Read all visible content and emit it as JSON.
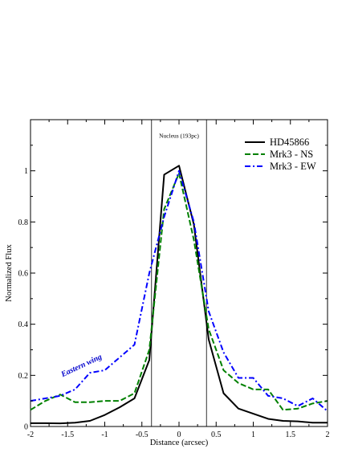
{
  "chart_data": {
    "type": "line",
    "xlabel": "Distance (arcsec)",
    "ylabel": "Normalized Flux",
    "xlim": [
      -2,
      2
    ],
    "ylim": [
      0,
      1.2
    ],
    "x_ticks": [
      -2,
      -1.5,
      -1,
      -0.5,
      0,
      0.5,
      1,
      1.5,
      2
    ],
    "x_tick_labels": [
      "-2",
      "-1.5",
      "-1",
      "-0.5",
      "0",
      "0.5",
      "1",
      "1.5",
      "2"
    ],
    "y_ticks": [
      0,
      0.2,
      0.4,
      0.6,
      0.8,
      1
    ],
    "y_tick_labels": [
      "0",
      "0.2",
      "0.4",
      "0.6",
      "0.8",
      "1"
    ],
    "grid": false,
    "legend_position": "top-right",
    "series": [
      {
        "name": "HD45866",
        "color": "#000000",
        "dash": "solid",
        "x": [
          -2,
          -1.8,
          -1.6,
          -1.4,
          -1.2,
          -1.0,
          -0.8,
          -0.6,
          -0.4,
          -0.2,
          0.0,
          0.2,
          0.4,
          0.6,
          0.8,
          1.0,
          1.2,
          1.4,
          1.6,
          1.8,
          2.0
        ],
        "values": [
          0.013,
          0.013,
          0.012,
          0.015,
          0.022,
          0.045,
          0.075,
          0.11,
          0.26,
          0.985,
          1.02,
          0.79,
          0.34,
          0.13,
          0.07,
          0.05,
          0.03,
          0.022,
          0.02,
          0.015,
          0.015
        ]
      },
      {
        "name": "Mrk3 - NS",
        "color": "#008000",
        "dash": "dashed",
        "x": [
          -2,
          -1.8,
          -1.6,
          -1.4,
          -1.2,
          -1.0,
          -0.8,
          -0.6,
          -0.4,
          -0.2,
          0.0,
          0.2,
          0.4,
          0.6,
          0.8,
          1.0,
          1.2,
          1.4,
          1.6,
          1.8,
          2.0
        ],
        "values": [
          0.065,
          0.1,
          0.125,
          0.095,
          0.095,
          0.1,
          0.1,
          0.13,
          0.3,
          0.85,
          0.99,
          0.73,
          0.38,
          0.22,
          0.17,
          0.145,
          0.145,
          0.065,
          0.07,
          0.09,
          0.1
        ]
      },
      {
        "name": "Mrk3 - EW",
        "color": "#0000ff",
        "dash": "dashdot",
        "x": [
          -2,
          -1.8,
          -1.6,
          -1.4,
          -1.2,
          -1.0,
          -0.8,
          -0.6,
          -0.4,
          -0.2,
          0.0,
          0.2,
          0.4,
          0.6,
          0.8,
          1.0,
          1.2,
          1.4,
          1.6,
          1.8,
          2.0
        ],
        "values": [
          0.1,
          0.11,
          0.12,
          0.145,
          0.21,
          0.22,
          0.27,
          0.32,
          0.6,
          0.82,
          1.0,
          0.8,
          0.45,
          0.29,
          0.19,
          0.19,
          0.12,
          0.11,
          0.08,
          0.11,
          0.06
        ]
      }
    ],
    "vertical_lines": [
      -0.37,
      0.37
    ],
    "annotations": [
      {
        "text": "Nucleus (193pc)",
        "x": 0.0,
        "y": 1.13
      },
      {
        "text": "Eastern wing",
        "x": -1.3,
        "y": 0.23,
        "color": "#0000cc"
      }
    ]
  }
}
